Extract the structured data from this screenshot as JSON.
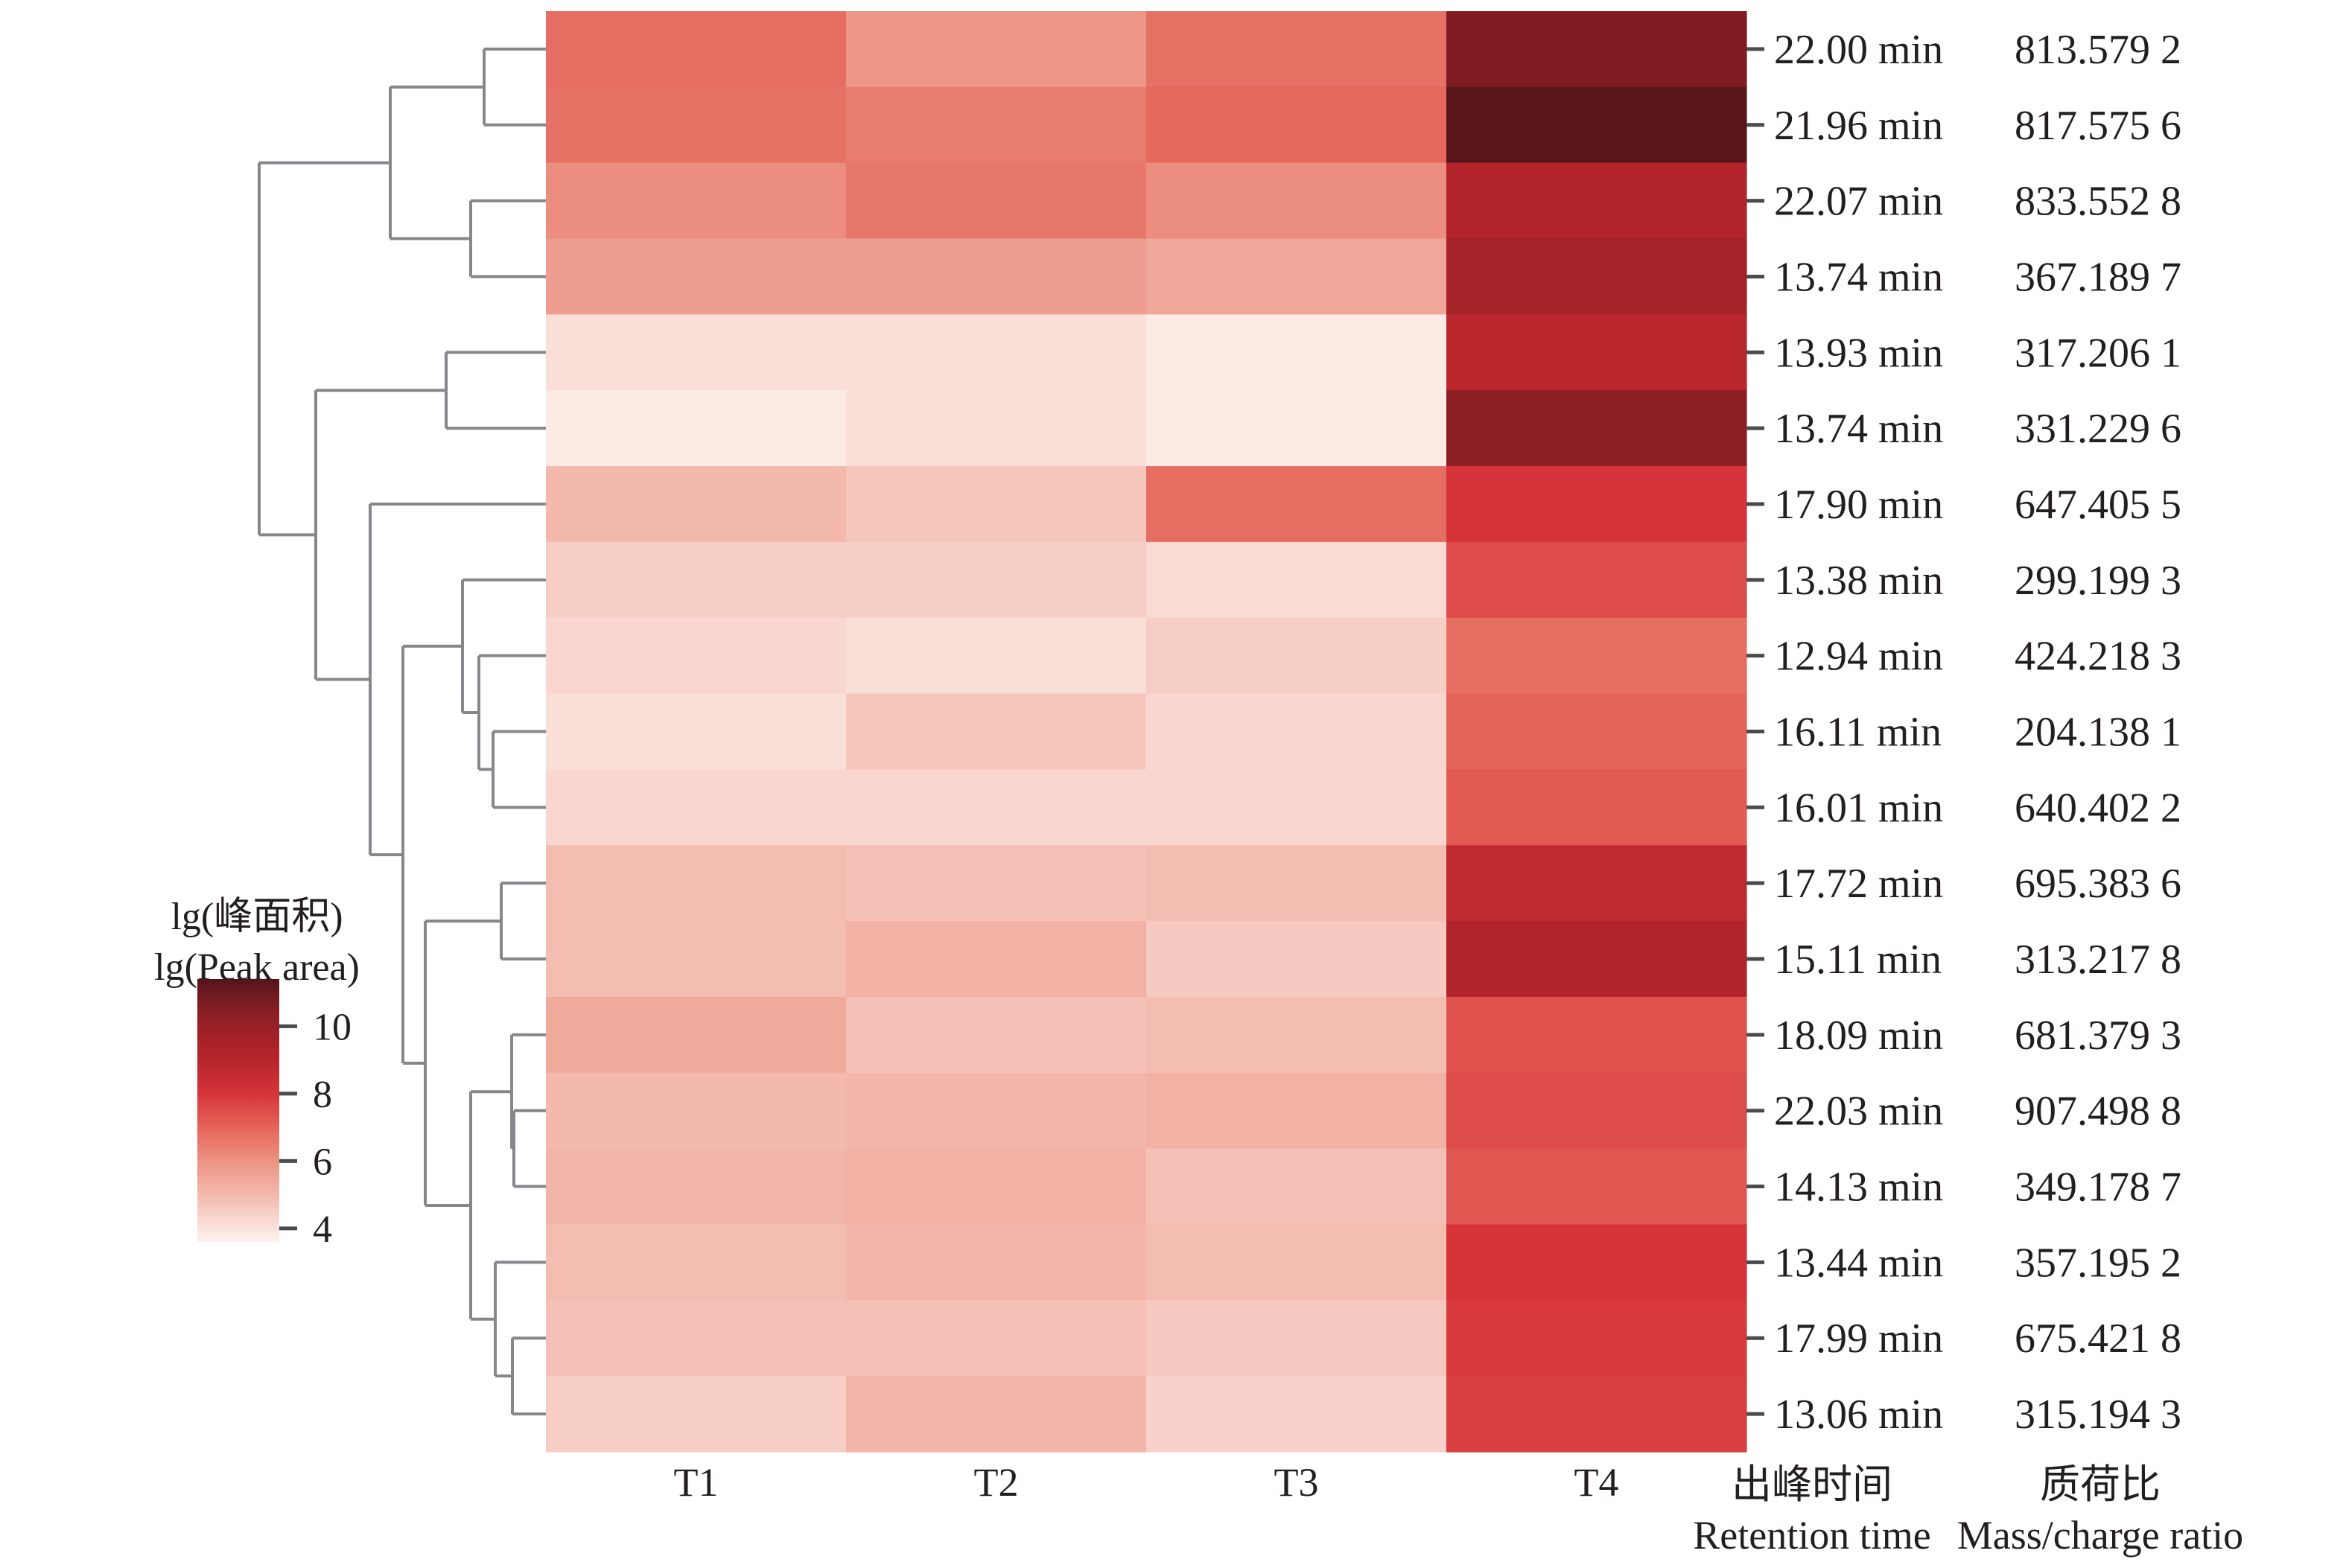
{
  "chart_data": {
    "type": "heatmap",
    "title": "",
    "columns": [
      "T1",
      "T2",
      "T3",
      "T4"
    ],
    "rows": [
      {
        "retention_time": "22.00 min",
        "mz": "813.579 2",
        "values": [
          6.8,
          5.9,
          6.7,
          10.6
        ]
      },
      {
        "retention_time": "21.96 min",
        "mz": "817.575 6",
        "values": [
          6.7,
          6.5,
          6.9,
          11.3
        ]
      },
      {
        "retention_time": "22.07 min",
        "mz": "833.552 8",
        "values": [
          6.1,
          6.6,
          6.1,
          9.2
        ]
      },
      {
        "retention_time": "13.74 min",
        "mz": "367.189 7",
        "values": [
          5.7,
          5.7,
          5.5,
          9.6
        ]
      },
      {
        "retention_time": "13.93 min",
        "mz": "317.206 1",
        "values": [
          4.1,
          4.1,
          3.8,
          8.9
        ]
      },
      {
        "retention_time": "13.74 min",
        "mz": "331.229 6",
        "values": [
          3.8,
          4.1,
          3.8,
          10.3
        ]
      },
      {
        "retention_time": "17.90 min",
        "mz": "647.405 5",
        "values": [
          5.0,
          4.7,
          6.8,
          8.0
        ]
      },
      {
        "retention_time": "13.38 min",
        "mz": "299.199 3",
        "values": [
          4.5,
          4.5,
          4.2,
          7.5
        ]
      },
      {
        "retention_time": "12.94 min",
        "mz": "424.218 3",
        "values": [
          4.3,
          4.1,
          4.5,
          6.8
        ]
      },
      {
        "retention_time": "16.11 min",
        "mz": "204.138 1",
        "values": [
          4.1,
          4.7,
          4.3,
          7.0
        ]
      },
      {
        "retention_time": "16.01 min",
        "mz": "640.402 2",
        "values": [
          4.3,
          4.3,
          4.3,
          7.2
        ]
      },
      {
        "retention_time": "17.72 min",
        "mz": "695.383 6",
        "values": [
          4.9,
          4.8,
          4.9,
          8.7
        ]
      },
      {
        "retention_time": "15.11 min",
        "mz": "313.217 8",
        "values": [
          4.9,
          5.2,
          4.6,
          9.2
        ]
      },
      {
        "retention_time": "18.09 min",
        "mz": "681.379 3",
        "values": [
          5.4,
          4.8,
          4.9,
          7.4
        ]
      },
      {
        "retention_time": "22.03 min",
        "mz": "907.498 8",
        "values": [
          5.0,
          5.1,
          5.2,
          7.5
        ]
      },
      {
        "retention_time": "14.13 min",
        "mz": "349.178 7",
        "values": [
          5.1,
          5.2,
          4.8,
          7.3
        ]
      },
      {
        "retention_time": "13.44 min",
        "mz": "357.195 2",
        "values": [
          4.9,
          5.1,
          4.9,
          8.0
        ]
      },
      {
        "retention_time": "17.99 min",
        "mz": "675.421 8",
        "values": [
          4.8,
          4.8,
          4.6,
          7.9
        ]
      },
      {
        "retention_time": "13.06 min",
        "mz": "315.194 3",
        "values": [
          4.5,
          5.1,
          4.4,
          7.8
        ]
      }
    ],
    "row_axis_titles": {
      "retention_cn": "出峰时间",
      "retention_en": "Retention time",
      "mz_cn": "质荷比",
      "mz_en": "Mass/charge ratio"
    },
    "colorbar": {
      "title_cn": "lg(峰面积)",
      "title_en": "lg(Peak area)",
      "range": [
        3.6,
        11.4
      ],
      "ticks": [
        10,
        8,
        6,
        4
      ],
      "placement": "left",
      "scale": [
        {
          "value": 3.6,
          "color": "#fdf1ed"
        },
        {
          "value": 4.0,
          "color": "#fbe3dd"
        },
        {
          "value": 5.0,
          "color": "#f3b9ad"
        },
        {
          "value": 6.0,
          "color": "#ec9383"
        },
        {
          "value": 7.0,
          "color": "#e46459"
        },
        {
          "value": 8.0,
          "color": "#d5343a"
        },
        {
          "value": 9.0,
          "color": "#b6252b"
        },
        {
          "value": 10.0,
          "color": "#9a2027"
        },
        {
          "value": 11.0,
          "color": "#6c1a1f"
        },
        {
          "value": 11.4,
          "color": "#521419"
        }
      ]
    },
    "dendrogram": {
      "side": "left",
      "merges": [
        {
          "id": "c01",
          "children": [
            "r0",
            "r1"
          ],
          "height": 0.17
        },
        {
          "id": "c23",
          "children": [
            "r2",
            "r3"
          ],
          "height": 0.22
        },
        {
          "id": "cA",
          "children": [
            "c01",
            "c23"
          ],
          "height": 0.54
        },
        {
          "id": "c45",
          "children": [
            "r4",
            "r5"
          ],
          "height": 0.35
        },
        {
          "id": "c910",
          "children": [
            "r9",
            "r10"
          ],
          "height": 0.18
        },
        {
          "id": "c8",
          "children": [
            "r8",
            "c910"
          ],
          "height": 0.23
        },
        {
          "id": "c7",
          "children": [
            "r7",
            "c8"
          ],
          "height": 0.29
        },
        {
          "id": "c1112",
          "children": [
            "r11",
            "r12"
          ],
          "height": 0.15
        },
        {
          "id": "c1415",
          "children": [
            "r14",
            "r15"
          ],
          "height": 0.11
        },
        {
          "id": "c13",
          "children": [
            "r13",
            "c1415"
          ],
          "height": 0.12
        },
        {
          "id": "c1718",
          "children": [
            "r17",
            "r18"
          ],
          "height": 0.12
        },
        {
          "id": "c16",
          "children": [
            "r16",
            "c1718"
          ],
          "height": 0.18
        },
        {
          "id": "cB",
          "children": [
            "c13",
            "c16"
          ],
          "height": 0.26
        },
        {
          "id": "cC",
          "children": [
            "c1112",
            "cB"
          ],
          "height": 0.42
        },
        {
          "id": "cD",
          "children": [
            "c7",
            "cC"
          ],
          "height": 0.5
        },
        {
          "id": "cE",
          "children": [
            "r6",
            "cD"
          ],
          "height": 0.62
        },
        {
          "id": "cF",
          "children": [
            "c45",
            "cE"
          ],
          "height": 0.8
        },
        {
          "id": "root",
          "children": [
            "cA",
            "cF"
          ],
          "height": 1.0
        }
      ]
    }
  }
}
